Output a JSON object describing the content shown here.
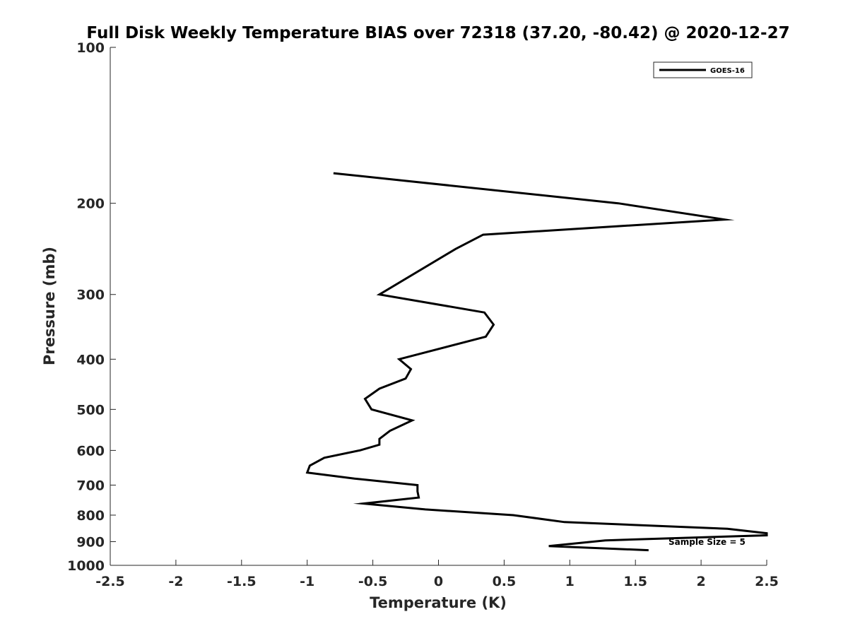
{
  "chart_data": {
    "type": "line",
    "title": "Full Disk Weekly Temperature BIAS over 72318 (37.20, -80.42) @ 2020-12-27",
    "xlabel": "Temperature (K)",
    "ylabel": "Pressure (mb)",
    "xlim": [
      -2.5,
      2.5
    ],
    "ylim": [
      100,
      1000
    ],
    "y_scale": "log",
    "y_reversed": true,
    "grid": false,
    "x_ticks": [
      -2.5,
      -2,
      -1.5,
      -1,
      -0.5,
      0,
      0.5,
      1,
      1.5,
      2,
      2.5
    ],
    "x_tick_labels": [
      "-2.5",
      "-2",
      "-1.5",
      "-1",
      "-0.5",
      "0",
      "0.5",
      "1",
      "1.5",
      "2",
      "2.5"
    ],
    "y_ticks": [
      100,
      200,
      300,
      400,
      500,
      600,
      700,
      800,
      900,
      1000
    ],
    "y_tick_labels": [
      "100",
      "200",
      "300",
      "400",
      "500",
      "600",
      "700",
      "800",
      "900",
      "1000"
    ],
    "legend": {
      "position": "top-right",
      "entries": [
        "GOES-16"
      ]
    },
    "annotation": "Sample Size = 5",
    "series": [
      {
        "name": "GOES-16",
        "color": "#000000",
        "points": [
          [
            -0.8,
            175
          ],
          [
            1.37,
            200
          ],
          [
            2.18,
            215
          ],
          [
            0.34,
            230
          ],
          [
            0.13,
            245
          ],
          [
            -0.45,
            300
          ],
          [
            0.35,
            325
          ],
          [
            0.42,
            343
          ],
          [
            0.36,
            362
          ],
          [
            -0.3,
            400
          ],
          [
            -0.21,
            418
          ],
          [
            -0.25,
            436
          ],
          [
            -0.45,
            456
          ],
          [
            -0.56,
            477
          ],
          [
            -0.51,
            500
          ],
          [
            -0.2,
            525
          ],
          [
            -0.37,
            550
          ],
          [
            -0.45,
            570
          ],
          [
            -0.45,
            585
          ],
          [
            -0.6,
            600
          ],
          [
            -0.87,
            620
          ],
          [
            -0.98,
            642
          ],
          [
            -1.0,
            662
          ],
          [
            -0.64,
            680
          ],
          [
            -0.16,
            700
          ],
          [
            -0.16,
            720
          ],
          [
            -0.15,
            740
          ],
          [
            -0.57,
            760
          ],
          [
            -0.1,
            780
          ],
          [
            0.57,
            800
          ],
          [
            0.96,
            825
          ],
          [
            2.2,
            850
          ],
          [
            2.5,
            867
          ],
          [
            2.5,
            875
          ],
          [
            1.27,
            895
          ],
          [
            0.84,
            918
          ],
          [
            1.6,
            935
          ]
        ]
      }
    ]
  }
}
